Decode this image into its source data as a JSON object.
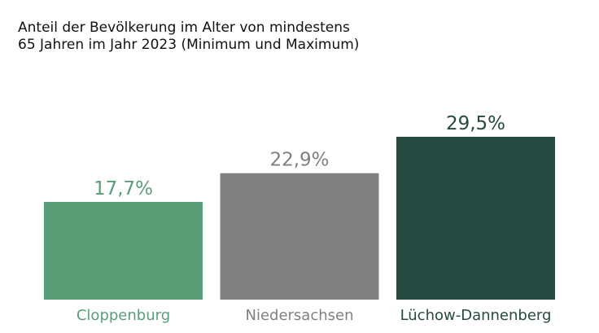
{
  "title_lines": [
    "Anteil der Bevölkerung im Alter von mindestens",
    "65 Jahren im Jahr 2023 (Minimum und Maximum)"
  ],
  "chart_data": {
    "type": "bar",
    "categories": [
      "Cloppenburg",
      "Niedersachsen",
      "Lüchow-Dannenberg"
    ],
    "values": [
      17.7,
      22.9,
      29.5
    ],
    "value_labels": [
      "17,7%",
      "22,9%",
      "29,5%"
    ],
    "colors": [
      "#5a9e78",
      "#808080",
      "#264a42"
    ],
    "ylim": [
      0,
      29.5
    ],
    "grid": false,
    "legend": "none",
    "xlabel": "",
    "ylabel": ""
  }
}
